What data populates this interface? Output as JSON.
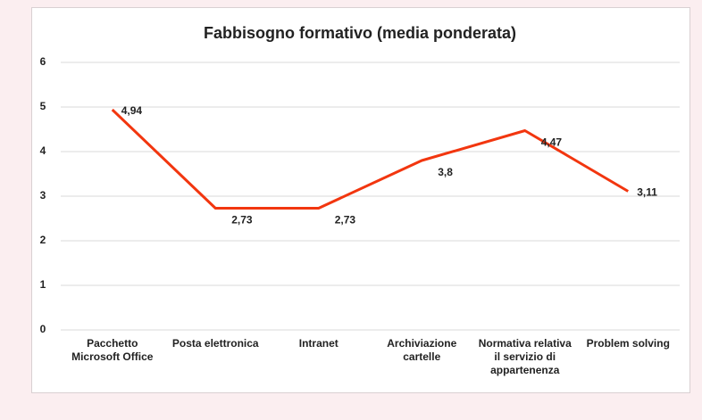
{
  "chart_data": {
    "type": "line",
    "title": "Fabbisogno formativo (media ponderata)",
    "categories": [
      "Pacchetto Microsoft Office",
      "Posta elettronica",
      "Intranet",
      "Archiviazione cartelle",
      "Normativa relativa il servizio di appartenenza",
      "Problem solving"
    ],
    "series": [
      {
        "name": null,
        "color": "#f2360f",
        "values": [
          4.94,
          2.73,
          2.73,
          3.8,
          4.47,
          3.11
        ],
        "value_labels": [
          "4,94",
          "2,73",
          "2,73",
          "3,8",
          "4,47",
          "3,11"
        ]
      }
    ],
    "ylim": [
      0,
      6
    ],
    "yticks": [
      0,
      1,
      2,
      3,
      4,
      5,
      6
    ],
    "grid": true
  }
}
